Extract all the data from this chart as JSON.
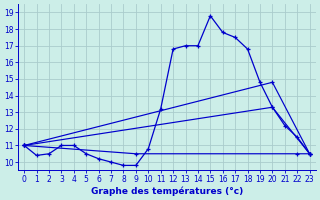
{
  "title": "Graphe des températures (°c)",
  "bg_color": "#cceee8",
  "grid_color": "#aacccc",
  "line_color": "#0000cc",
  "xlim": [
    -0.5,
    23.5
  ],
  "ylim": [
    9.5,
    19.5
  ],
  "xticks": [
    0,
    1,
    2,
    3,
    4,
    5,
    6,
    7,
    8,
    9,
    10,
    11,
    12,
    13,
    14,
    15,
    16,
    17,
    18,
    19,
    20,
    21,
    22,
    23
  ],
  "yticks": [
    10,
    11,
    12,
    13,
    14,
    15,
    16,
    17,
    18,
    19
  ],
  "hourly": [
    11.0,
    10.4,
    10.5,
    11.0,
    11.0,
    10.5,
    10.2,
    10.0,
    9.8,
    9.8,
    10.8,
    13.2,
    16.8,
    17.0,
    17.0,
    18.8,
    17.8,
    17.5,
    16.8,
    14.8,
    13.3,
    12.2,
    11.5,
    10.5
  ],
  "line_max": [
    [
      0,
      11.0
    ],
    [
      20,
      14.8
    ],
    [
      23,
      10.5
    ]
  ],
  "line_avg": [
    [
      0,
      11.0
    ],
    [
      20,
      13.3
    ],
    [
      23,
      10.5
    ]
  ],
  "line_min": [
    [
      0,
      11.0
    ],
    [
      9,
      10.5
    ],
    [
      22,
      10.5
    ],
    [
      23,
      10.5
    ]
  ]
}
